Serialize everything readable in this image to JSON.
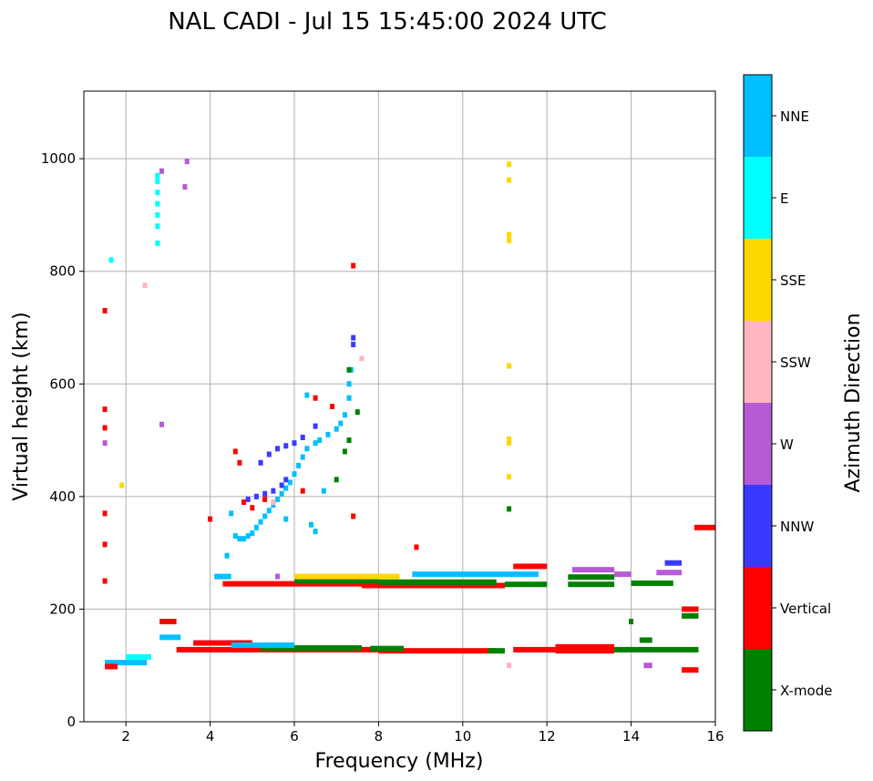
{
  "chart_data": {
    "type": "scatter",
    "title": "NAL CADI - Jul 15 15:45:00 2024 UTC",
    "xlabel": "Frequency (MHz)",
    "ylabel": "Virtual height (km)",
    "xlim": [
      1,
      16
    ],
    "ylim": [
      0,
      1120
    ],
    "xticks": [
      2,
      4,
      6,
      8,
      10,
      12,
      14,
      16
    ],
    "yticks": [
      0,
      200,
      400,
      600,
      800,
      1000
    ],
    "grid": true,
    "colorbar": {
      "label": "Azimuth Direction",
      "categories": [
        "X-mode",
        "Vertical",
        "NNW",
        "W",
        "SSW",
        "SSE",
        "E",
        "NNE"
      ],
      "colors": [
        "#008000",
        "#ff0000",
        "#3a3aff",
        "#b65ad6",
        "#ffb6c1",
        "#ffd700",
        "#00ffff",
        "#00bfff"
      ]
    },
    "runs_note": "[f_start_MHz, f_end_MHz, height_km, category_index]",
    "runs": [
      [
        3.2,
        8,
        128,
        1
      ],
      [
        8,
        10.8,
        126,
        1
      ],
      [
        5.2,
        7.6,
        131,
        0
      ],
      [
        7.8,
        8.6,
        130,
        0
      ],
      [
        11.2,
        12.2,
        128,
        1
      ],
      [
        12.2,
        13.6,
        133,
        1
      ],
      [
        12.2,
        13.6,
        126,
        1
      ],
      [
        13.6,
        15.6,
        128,
        0
      ],
      [
        14.2,
        14.5,
        145,
        0
      ],
      [
        14.3,
        14.5,
        100,
        3
      ],
      [
        15.2,
        15.6,
        92,
        1
      ],
      [
        15.2,
        15.6,
        188,
        0
      ],
      [
        15.2,
        15.6,
        200,
        1
      ],
      [
        3.6,
        5,
        140,
        1
      ],
      [
        4.5,
        6,
        136,
        7
      ],
      [
        2.8,
        3.3,
        150,
        7
      ],
      [
        1.5,
        2.5,
        105,
        7
      ],
      [
        1.5,
        1.8,
        98,
        1
      ],
      [
        2.8,
        3.2,
        178,
        1
      ],
      [
        2,
        2.6,
        115,
        6
      ],
      [
        10.6,
        11,
        126,
        0
      ],
      [
        4.1,
        4.5,
        258,
        7
      ],
      [
        4.3,
        7.6,
        245,
        1
      ],
      [
        7.6,
        11,
        242,
        1
      ],
      [
        6,
        8,
        250,
        0
      ],
      [
        8,
        10.8,
        248,
        0
      ],
      [
        6,
        8.5,
        258,
        5
      ],
      [
        8.8,
        11.8,
        262,
        7
      ],
      [
        11,
        12,
        244,
        0
      ],
      [
        12.5,
        13.6,
        244,
        0
      ],
      [
        12.5,
        13.6,
        257,
        0
      ],
      [
        12.6,
        13.6,
        270,
        3
      ],
      [
        13.6,
        14,
        262,
        3
      ],
      [
        14,
        15,
        246,
        0
      ],
      [
        14.6,
        15.2,
        265,
        3
      ],
      [
        14.8,
        15.2,
        282,
        2
      ],
      [
        11.2,
        12,
        276,
        1
      ],
      [
        15.5,
        16,
        345,
        1
      ]
    ],
    "points_note": "[f_MHz, height_km, category_index]",
    "points": [
      [
        4.6,
        330,
        7
      ],
      [
        4.7,
        325,
        7
      ],
      [
        4.8,
        325,
        7
      ],
      [
        4.9,
        330,
        7
      ],
      [
        5.0,
        335,
        7
      ],
      [
        5.1,
        345,
        7
      ],
      [
        5.2,
        355,
        7
      ],
      [
        5.3,
        365,
        7
      ],
      [
        5.4,
        375,
        7
      ],
      [
        5.5,
        385,
        7
      ],
      [
        5.6,
        395,
        7
      ],
      [
        5.7,
        405,
        7
      ],
      [
        5.8,
        415,
        7
      ],
      [
        5.9,
        425,
        7
      ],
      [
        6.0,
        440,
        7
      ],
      [
        6.1,
        455,
        7
      ],
      [
        6.2,
        470,
        7
      ],
      [
        6.3,
        485,
        7
      ],
      [
        6.5,
        495,
        7
      ],
      [
        6.6,
        500,
        7
      ],
      [
        6.8,
        510,
        7
      ],
      [
        7.0,
        520,
        7
      ],
      [
        7.1,
        530,
        7
      ],
      [
        7.2,
        545,
        7
      ],
      [
        7.3,
        575,
        7
      ],
      [
        7.3,
        600,
        7
      ],
      [
        7.35,
        625,
        7
      ],
      [
        6.7,
        410,
        7
      ],
      [
        6.4,
        350,
        7
      ],
      [
        6.5,
        338,
        7
      ],
      [
        5.8,
        360,
        7
      ],
      [
        4.4,
        295,
        7
      ],
      [
        6.3,
        580,
        7
      ],
      [
        4.5,
        370,
        7
      ],
      [
        4.9,
        395,
        2
      ],
      [
        5.1,
        400,
        2
      ],
      [
        5.3,
        405,
        2
      ],
      [
        5.5,
        410,
        2
      ],
      [
        5.7,
        420,
        2
      ],
      [
        5.8,
        430,
        2
      ],
      [
        5.2,
        460,
        2
      ],
      [
        5.4,
        475,
        2
      ],
      [
        5.6,
        485,
        2
      ],
      [
        5.8,
        490,
        2
      ],
      [
        6.0,
        495,
        2
      ],
      [
        6.2,
        505,
        2
      ],
      [
        6.5,
        525,
        2
      ],
      [
        7.4,
        670,
        2
      ],
      [
        7.4,
        682,
        2
      ],
      [
        7.2,
        480,
        0
      ],
      [
        7.3,
        500,
        0
      ],
      [
        7.5,
        550,
        0
      ],
      [
        7.3,
        625,
        0
      ],
      [
        7.0,
        430,
        0
      ],
      [
        11.1,
        378,
        0
      ],
      [
        14,
        178,
        0
      ],
      [
        4.6,
        480,
        1
      ],
      [
        4.7,
        460,
        1
      ],
      [
        6.5,
        575,
        1
      ],
      [
        6.9,
        560,
        1
      ],
      [
        5.0,
        380,
        1
      ],
      [
        4.8,
        390,
        1
      ],
      [
        5.3,
        395,
        1
      ],
      [
        6.2,
        410,
        1
      ],
      [
        7.4,
        810,
        1
      ],
      [
        7.4,
        365,
        1
      ],
      [
        1.5,
        730,
        1
      ],
      [
        1.5,
        555,
        1
      ],
      [
        1.5,
        522,
        1
      ],
      [
        1.5,
        370,
        1
      ],
      [
        1.5,
        315,
        1
      ],
      [
        1.5,
        250,
        1
      ],
      [
        8.9,
        310,
        1
      ],
      [
        4,
        360,
        1
      ],
      [
        7.6,
        645,
        4
      ],
      [
        5.5,
        390,
        4
      ],
      [
        2.45,
        775,
        4
      ],
      [
        11.1,
        100,
        4
      ],
      [
        11.1,
        990,
        5
      ],
      [
        11.1,
        962,
        5
      ],
      [
        11.1,
        865,
        5
      ],
      [
        11.1,
        855,
        5
      ],
      [
        11.1,
        632,
        5
      ],
      [
        11.1,
        502,
        5
      ],
      [
        11.1,
        495,
        5
      ],
      [
        11.1,
        435,
        5
      ],
      [
        1.9,
        420,
        5
      ],
      [
        2.75,
        850,
        6
      ],
      [
        2.75,
        880,
        6
      ],
      [
        2.75,
        900,
        6
      ],
      [
        2.75,
        920,
        6
      ],
      [
        2.75,
        940,
        6
      ],
      [
        2.75,
        960,
        6
      ],
      [
        2.75,
        970,
        6
      ],
      [
        1.65,
        820,
        6
      ],
      [
        2.85,
        978,
        3
      ],
      [
        3.45,
        995,
        3
      ],
      [
        3.4,
        950,
        3
      ],
      [
        1.5,
        495,
        3
      ],
      [
        2.85,
        528,
        3
      ],
      [
        5.6,
        258,
        3
      ]
    ]
  }
}
